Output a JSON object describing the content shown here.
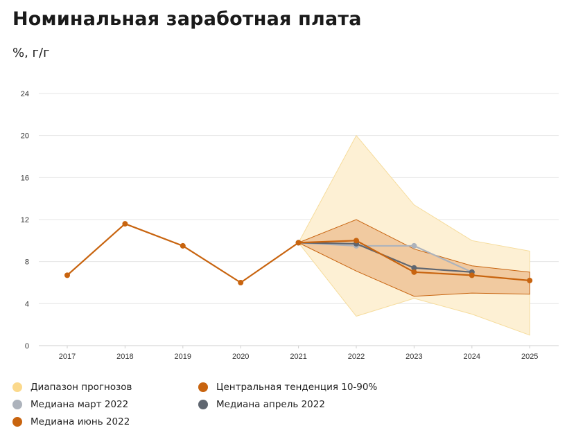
{
  "header": {
    "title": "Номинальная заработная плата",
    "subtitle": "%, г/г"
  },
  "chart_data": {
    "type": "line",
    "categories": [
      "2017",
      "2018",
      "2019",
      "2020",
      "2021",
      "2022",
      "2023",
      "2024",
      "2025"
    ],
    "ylim": [
      0,
      24
    ],
    "yticks": [
      0,
      4,
      8,
      12,
      16,
      20,
      24
    ],
    "grid": true,
    "legend_position": "bottom",
    "forecast_range": {
      "name": "Диапазон прогнозов",
      "color": "#fbd98c",
      "lower": [
        null,
        null,
        null,
        null,
        9.8,
        2.8,
        4.5,
        3.0,
        1.0
      ],
      "upper": [
        null,
        null,
        null,
        null,
        9.8,
        20.0,
        13.4,
        10.0,
        9.0
      ]
    },
    "central_tendency": {
      "name": "Центральная тенденция 10-90%",
      "color": "#c8640f",
      "lower": [
        null,
        null,
        null,
        null,
        9.8,
        7.1,
        4.7,
        5.0,
        4.9
      ],
      "upper": [
        null,
        null,
        null,
        null,
        9.8,
        12.0,
        9.2,
        7.6,
        7.0
      ]
    },
    "series": [
      {
        "name": "Медиана март 2022",
        "color": "#adb3bc",
        "values": [
          null,
          null,
          null,
          null,
          9.8,
          9.5,
          9.5,
          7.0,
          null
        ]
      },
      {
        "name": "Медиана апрель 2022",
        "color": "#5f6670",
        "values": [
          null,
          null,
          null,
          null,
          9.8,
          9.7,
          7.4,
          7.0,
          null
        ]
      },
      {
        "name": "Медиана июнь 2022",
        "color": "#c8640f",
        "values": [
          6.7,
          11.6,
          9.5,
          6.0,
          9.8,
          10.0,
          7.0,
          6.7,
          6.2
        ]
      }
    ]
  },
  "legend": {
    "items": [
      {
        "label": "Диапазон прогнозов",
        "color": "#fbd98c"
      },
      {
        "label": "Центральная тенденция 10-90%",
        "color": "#c8640f"
      },
      {
        "label": "Медиана март 2022",
        "color": "#adb3bc"
      },
      {
        "label": "Медиана апрель 2022",
        "color": "#5f6670"
      },
      {
        "label": "Медиана июнь 2022",
        "color": "#c8640f"
      }
    ]
  }
}
